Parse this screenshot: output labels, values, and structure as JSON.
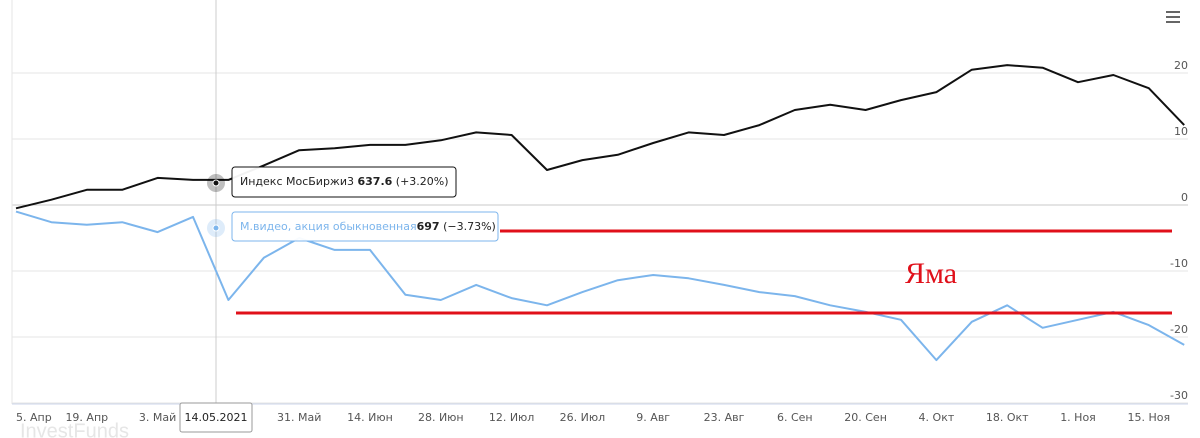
{
  "chart_data": {
    "type": "line",
    "categories": [
      "5. Апр",
      null,
      "19. Апр",
      null,
      "3. Май",
      null,
      null,
      null,
      "31. Май",
      null,
      "14. Июн",
      null,
      "28. Июн",
      null,
      "12. Июл",
      null,
      "26. Июл",
      null,
      "9. Авг",
      null,
      "23. Авг",
      null,
      "6. Сен",
      null,
      "20. Сен",
      null,
      "4. Окт",
      null,
      "18. Окт",
      null,
      "1. Ноя",
      null,
      "15. Ноя",
      null
    ],
    "series": [
      {
        "name": "Индекс МосБиржи3",
        "color": "#111111",
        "values": [
          -0.5,
          0.8,
          2.3,
          2.3,
          4.1,
          3.8,
          3.8,
          6,
          8.3,
          8.6,
          9.1,
          9.1,
          9.8,
          11,
          10.6,
          5.3,
          6.8,
          7.6,
          9.4,
          11,
          10.6,
          12.1,
          14.4,
          15.2,
          14.4,
          15.9,
          17.1,
          20.5,
          21.2,
          20.8,
          18.6,
          19.7,
          17.7,
          12.1
        ]
      },
      {
        "name": "М.видео, акция обыкновенная",
        "color": "#7cb5ec",
        "values": [
          -1,
          -2.6,
          -3,
          -2.6,
          -4.1,
          -1.8,
          -14.4,
          -8,
          -5,
          -6.8,
          -6.8,
          -13.6,
          -14.4,
          -12.1,
          -14.1,
          -15.2,
          -13.2,
          -11.4,
          -10.6,
          -11.1,
          -12.1,
          -13.2,
          -13.8,
          -15.2,
          -16.2,
          -17.4,
          -23.5,
          -17.7,
          -15.2,
          -18.6,
          -17.4,
          -16.2,
          -18.2,
          -21.2
        ]
      }
    ],
    "ylim": [
      -30,
      30
    ],
    "yticks": [
      20,
      10,
      0,
      -10,
      -20,
      -30
    ],
    "grid": true,
    "tooltip": {
      "date": "14.05.2021",
      "items": [
        {
          "value": "637.6",
          "change": "(+3.20%)"
        },
        {
          "value": "697",
          "change": "(−3.73%)"
        }
      ]
    },
    "annotation": "Яма",
    "watermark": "InvestFunds"
  }
}
